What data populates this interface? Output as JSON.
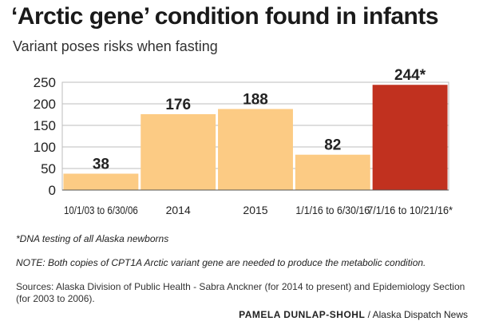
{
  "header": {
    "title": "‘Arctic gene’ condition found in infants",
    "subtitle": "Variant poses risks when fasting"
  },
  "chart_data": {
    "type": "bar",
    "categories": [
      "10/1/03 to 6/30/06",
      "2014",
      "2015",
      "1/1/16 to 6/30/16",
      "7/1/16 to 10/21/16*"
    ],
    "values": [
      38,
      176,
      188,
      82,
      244
    ],
    "data_labels": [
      "38",
      "176",
      "188",
      "82",
      "244*"
    ],
    "highlight_index": 4,
    "ylim": [
      0,
      250
    ],
    "yticks": [
      0,
      50,
      100,
      150,
      200,
      250
    ],
    "grid": true,
    "colors": {
      "bar": "#fccb84",
      "highlight": "#c1311f",
      "grid": "#bdbdbd"
    }
  },
  "footer": {
    "footnote": "*DNA testing of all Alaska newborns",
    "note": "NOTE: Both copies of CPT1A Arctic variant gene are needed to produce the metabolic condition.",
    "sources": "Sources: Alaska Division of Public Health - Sabra Anckner (for 2014 to present) and Epidemiology Section (for 2003 to 2006).",
    "credit_author": "PAMELA DUNLAP-SHOHL",
    "credit_org": " / Alaska Dispatch News"
  }
}
